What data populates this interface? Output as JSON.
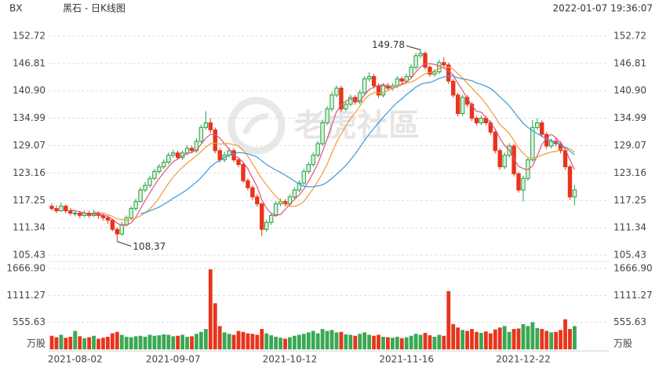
{
  "header": {
    "symbol": "BX",
    "name": "黑石 - 日K线图",
    "datetime": "2022-01-07 19:36:07"
  },
  "watermark": "老虎社區",
  "chart_data": {
    "type": "candlestick",
    "categories": [
      null,
      null,
      null,
      null,
      null,
      "2021-08-02",
      null,
      null,
      null,
      null,
      null,
      null,
      null,
      null,
      null,
      null,
      null,
      null,
      null,
      null,
      null,
      null,
      null,
      null,
      null,
      null,
      "2021-09-07",
      null,
      null,
      null,
      null,
      null,
      null,
      null,
      null,
      null,
      null,
      null,
      null,
      null,
      null,
      null,
      null,
      null,
      null,
      null,
      null,
      null,
      null,
      null,
      null,
      "2021-10-12",
      null,
      null,
      null,
      null,
      null,
      null,
      null,
      null,
      null,
      null,
      null,
      null,
      null,
      null,
      null,
      null,
      null,
      null,
      null,
      null,
      null,
      null,
      null,
      null,
      "2021-11-16",
      null,
      null,
      null,
      null,
      null,
      null,
      null,
      null,
      null,
      null,
      null,
      null,
      null,
      null,
      null,
      null,
      null,
      null,
      null,
      null,
      null,
      null,
      null,
      null,
      "2021-12-22",
      null,
      null,
      null,
      null,
      null,
      null,
      null,
      null,
      null,
      null,
      null
    ],
    "open": [
      116,
      115.5,
      115,
      116,
      115,
      114.5,
      114.5,
      114,
      114.5,
      114,
      114.5,
      114,
      113.5,
      113,
      111,
      110,
      112,
      113.5,
      115.5,
      117,
      119.5,
      120.5,
      122,
      123.5,
      124.5,
      125.5,
      127,
      127.5,
      126.5,
      127.5,
      128.5,
      128,
      130,
      133,
      134,
      132.5,
      128,
      126,
      127,
      128,
      126,
      125,
      121.5,
      120,
      118,
      116.5,
      111,
      112.5,
      114,
      116.5,
      117,
      116.5,
      118,
      119.5,
      121,
      123.5,
      125,
      127,
      129.5,
      134,
      137,
      140,
      141.5,
      137,
      138,
      139.5,
      138.5,
      140.5,
      143.5,
      144,
      142,
      140,
      142,
      141.5,
      142,
      143.5,
      143,
      144,
      146,
      148.5,
      149,
      146,
      144.5,
      145,
      147,
      146.5,
      143,
      140,
      136,
      139.5,
      138,
      135,
      134,
      135,
      134,
      132,
      128,
      124.5,
      127,
      129,
      123,
      119.5,
      122,
      126,
      133,
      134,
      131.5,
      129,
      130,
      129.5,
      128,
      124.5,
      118
    ],
    "high": [
      116.6,
      116.2,
      116.8,
      116.4,
      115.6,
      115.2,
      115.0,
      115.1,
      115.0,
      115.2,
      114.9,
      114.6,
      114.0,
      113.3,
      111.5,
      112.6,
      114.0,
      116.0,
      117.6,
      120.1,
      121.2,
      122.6,
      124.1,
      125.1,
      126.1,
      127.6,
      128.2,
      128.0,
      128.1,
      129.2,
      129.0,
      130.7,
      133.6,
      136.5,
      135.0,
      133.0,
      128.6,
      127.7,
      128.6,
      128.5,
      126.6,
      125.4,
      122.0,
      120.5,
      118.6,
      116.8,
      113.1,
      114.6,
      117.1,
      117.6,
      117.5,
      118.6,
      120.1,
      121.6,
      124.1,
      125.6,
      127.6,
      130.1,
      134.6,
      137.6,
      140.6,
      142.1,
      142.0,
      138.6,
      140.1,
      140.0,
      141.1,
      144.1,
      144.9,
      144.5,
      142.5,
      142.6,
      142.6,
      142.6,
      144.1,
      144.0,
      144.6,
      146.6,
      149.1,
      149.78,
      149.4,
      146.5,
      145.6,
      147.6,
      148.2,
      147.0,
      143.5,
      140.5,
      140.1,
      140.0,
      138.5,
      135.5,
      135.6,
      135.5,
      134.5,
      132.5,
      128.5,
      127.6,
      129.6,
      129.5,
      123.5,
      122.6,
      126.6,
      134.6,
      135.0,
      134.5,
      132.0,
      130.6,
      130.6,
      130.0,
      128.5,
      125.0,
      120.6
    ],
    "low": [
      115.0,
      114.5,
      114.8,
      114.5,
      114.0,
      113.8,
      113.4,
      113.6,
      113.5,
      113.7,
      113.3,
      112.9,
      112.2,
      110.6,
      108.37,
      109.6,
      111.6,
      113.2,
      115.0,
      116.8,
      119.0,
      120.0,
      121.6,
      123.0,
      124.0,
      125.0,
      126.5,
      126.0,
      126.0,
      127.0,
      127.4,
      127.5,
      129.6,
      132.5,
      131.8,
      127.4,
      125.4,
      125.5,
      126.5,
      125.5,
      124.4,
      121.0,
      119.4,
      117.4,
      115.9,
      109.5,
      110.5,
      112.0,
      113.6,
      116.0,
      115.9,
      116.0,
      117.5,
      119.0,
      120.5,
      123.0,
      124.5,
      126.5,
      129.0,
      133.5,
      136.5,
      139.5,
      136.4,
      136.5,
      137.5,
      137.9,
      138.0,
      140.0,
      142.9,
      141.4,
      139.4,
      139.5,
      141.0,
      141.0,
      141.5,
      142.4,
      142.5,
      143.5,
      145.5,
      147.9,
      145.4,
      143.9,
      144.0,
      144.5,
      146.0,
      142.4,
      139.4,
      135.4,
      135.5,
      137.4,
      134.4,
      133.4,
      133.5,
      133.4,
      131.4,
      127.4,
      123.9,
      124.0,
      126.5,
      122.4,
      118.9,
      117.0,
      121.5,
      125.5,
      132.5,
      130.9,
      128.4,
      128.5,
      128.9,
      127.4,
      123.9,
      117.4,
      116.2
    ],
    "close": [
      115.5,
      115,
      116,
      115,
      114.5,
      114.5,
      114,
      114.5,
      114,
      114.5,
      114,
      113.5,
      113,
      111,
      110,
      112,
      113.5,
      115.5,
      117,
      119.5,
      120.5,
      122,
      123.5,
      124.5,
      125.5,
      127,
      127.5,
      126.5,
      127.5,
      128.5,
      128,
      130,
      133,
      134,
      132.5,
      128,
      126,
      127,
      128,
      126,
      125,
      121.5,
      120,
      118,
      116.5,
      111,
      112.5,
      114,
      116.5,
      117,
      116.5,
      118,
      119.5,
      121,
      123.5,
      125,
      127,
      129.5,
      134,
      137,
      140,
      141.5,
      137,
      138,
      139.5,
      138.5,
      140.5,
      143.5,
      144,
      142,
      140,
      142,
      141.5,
      142,
      143.5,
      143,
      144,
      146,
      148.5,
      149,
      146,
      144.5,
      145,
      147,
      146.5,
      143,
      140,
      136,
      139.5,
      138,
      135,
      134,
      135,
      134,
      132,
      128,
      124.5,
      127,
      129,
      123,
      119.5,
      122,
      126,
      133,
      134,
      131.5,
      129,
      130,
      129.5,
      128,
      124.5,
      118,
      119.5
    ],
    "volume": [
      280,
      250,
      300,
      240,
      260,
      380,
      270,
      230,
      250,
      280,
      220,
      240,
      260,
      330,
      360,
      300,
      260,
      250,
      270,
      280,
      260,
      300,
      280,
      290,
      310,
      300,
      270,
      280,
      300,
      260,
      270,
      320,
      360,
      420,
      1650,
      950,
      480,
      350,
      320,
      300,
      380,
      360,
      330,
      320,
      300,
      420,
      330,
      290,
      260,
      240,
      220,
      250,
      280,
      300,
      320,
      350,
      380,
      330,
      420,
      380,
      400,
      350,
      360,
      310,
      300,
      280,
      320,
      350,
      300,
      280,
      300,
      260,
      250,
      240,
      260,
      230,
      250,
      280,
      320,
      300,
      340,
      290,
      260,
      300,
      280,
      1200,
      520,
      450,
      400,
      380,
      420,
      360,
      340,
      370,
      330,
      410,
      450,
      480,
      360,
      420,
      430,
      520,
      480,
      560,
      440,
      420,
      380,
      350,
      360,
      400,
      620,
      420,
      480
    ],
    "volume_unit": "万股",
    "up_color": "#26a042",
    "down_color": "#e8341c",
    "ma_series": [
      {
        "color": "#e0527f",
        "values": [
          null,
          null,
          null,
          null,
          115.2,
          115.0,
          114.8,
          114.5,
          114.3,
          114.3,
          114.2,
          114.1,
          113.8,
          113.2,
          112.3,
          111.9,
          111.9,
          112.4,
          113.6,
          115.5,
          117.2,
          118.9,
          120.5,
          122.0,
          123.2,
          124.5,
          125.6,
          126.2,
          126.8,
          127.4,
          127.6,
          128.1,
          129.4,
          130.7,
          131.5,
          131.5,
          130.7,
          129.5,
          128.3,
          127.0,
          126.4,
          125.5,
          124.1,
          122.1,
          120.2,
          117.4,
          115.6,
          114.4,
          114.1,
          114.2,
          115.3,
          116.4,
          117.5,
          118.4,
          119.7,
          121.4,
          123.2,
          125.2,
          127.8,
          130.5,
          133.5,
          136.4,
          137.9,
          138.7,
          139.2,
          138.9,
          138.7,
          140.0,
          141.2,
          141.7,
          142.0,
          142.3,
          141.9,
          141.5,
          141.8,
          142.4,
          142.8,
          143.7,
          145.0,
          146.1,
          146.7,
          146.8,
          146.6,
          146.3,
          145.8,
          145.2,
          144.3,
          142.5,
          141.0,
          139.3,
          137.7,
          136.5,
          136.3,
          135.2,
          134.0,
          132.6,
          130.7,
          129.1,
          128.1,
          126.3,
          124.6,
          124.1,
          123.9,
          124.7,
          126.9,
          129.3,
          130.7,
          131.5,
          130.8,
          129.6,
          128.3,
          126.0,
          123.9
        ]
      },
      {
        "color": "#f39a35",
        "values": [
          null,
          null,
          null,
          null,
          null,
          null,
          null,
          null,
          null,
          114.8,
          114.6,
          114.5,
          114.2,
          113.8,
          113.3,
          113.1,
          113.0,
          113.1,
          113.4,
          113.9,
          114.6,
          115.4,
          116.5,
          117.8,
          119.4,
          120.9,
          122.3,
          123.4,
          124.4,
          125.3,
          126.1,
          126.9,
          127.8,
          128.8,
          129.5,
          129.6,
          129.4,
          129.5,
          129.5,
          129.3,
          129.0,
          128.1,
          126.8,
          125.2,
          123.6,
          121.9,
          120.6,
          119.3,
          118.1,
          117.2,
          116.4,
          116.0,
          116.0,
          116.3,
          117.0,
          118.4,
          119.8,
          121.4,
          123.1,
          125.1,
          127.5,
          129.8,
          131.6,
          133.3,
          134.9,
          136.2,
          137.6,
          139.0,
          140.0,
          140.5,
          140.5,
          140.5,
          141.0,
          141.4,
          141.8,
          142.2,
          142.6,
          142.8,
          143.3,
          144.0,
          144.6,
          144.8,
          145.2,
          145.7,
          146.0,
          146.0,
          145.6,
          144.6,
          143.7,
          142.6,
          141.5,
          140.4,
          139.4,
          138.1,
          136.7,
          135.2,
          133.6,
          132.7,
          131.7,
          130.2,
          128.6,
          127.4,
          126.5,
          126.4,
          126.6,
          127.0,
          127.4,
          127.7,
          127.8,
          128.3,
          128.8,
          128.4,
          127.7
        ]
      },
      {
        "color": "#3d98d6",
        "values": [
          null,
          null,
          null,
          null,
          null,
          null,
          null,
          null,
          null,
          null,
          null,
          null,
          null,
          null,
          null,
          null,
          null,
          null,
          null,
          114.4,
          114.6,
          115.0,
          115.4,
          115.8,
          116.4,
          117.0,
          117.7,
          118.3,
          118.9,
          119.6,
          120.4,
          121.2,
          122.2,
          123.3,
          124.5,
          125.3,
          125.9,
          126.5,
          127.0,
          127.3,
          127.6,
          127.5,
          127.3,
          127.0,
          126.6,
          125.8,
          125.0,
          124.4,
          123.8,
          123.3,
          122.7,
          122.1,
          121.4,
          120.8,
          120.3,
          120.2,
          120.2,
          120.4,
          120.6,
          121.2,
          122.0,
          122.9,
          123.8,
          124.8,
          126.0,
          127.3,
          128.7,
          130.2,
          131.6,
          132.8,
          134.0,
          135.2,
          136.3,
          137.4,
          138.4,
          139.2,
          140.1,
          140.9,
          141.7,
          142.3,
          142.6,
          142.7,
          143.1,
          143.6,
          143.9,
          144.1,
          144.1,
          143.7,
          143.5,
          143.3,
          143.1,
          142.6,
          142.3,
          141.9,
          141.4,
          140.6,
          139.6,
          138.7,
          137.7,
          136.4,
          135.1,
          133.9,
          133.0,
          132.3,
          131.7,
          131.1,
          130.5,
          130.2,
          129.8,
          129.3,
          128.7,
          127.9,
          127.1
        ]
      }
    ],
    "ylim": [
      105.43,
      152.72
    ],
    "yticks": [
      152.72,
      146.81,
      {
        "value": 140.9,
        "label": "140.90"
      },
      134.99,
      129.07,
      123.16,
      117.25,
      111.34,
      105.43
    ],
    "volume_ylim": [
      0,
      1666.9
    ],
    "volume_yticks": [
      {
        "value": 1666.9,
        "label": "1666.90"
      },
      1111.27,
      555.63
    ],
    "grid": true
  }
}
